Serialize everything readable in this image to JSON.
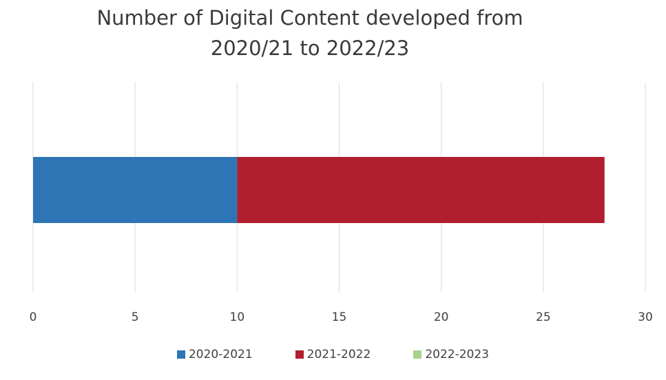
{
  "chart_data": {
    "type": "bar",
    "orientation": "horizontal",
    "stacked": true,
    "title_lines": [
      "Number of Digital Content developed from",
      "2020/21 to 2022/23"
    ],
    "categories": [
      ""
    ],
    "series": [
      {
        "name": "2020-2021",
        "values": [
          10
        ],
        "color": "#2e75b6"
      },
      {
        "name": "2021-2022",
        "values": [
          18
        ],
        "color": "#b01e2f"
      },
      {
        "name": "2022-2023",
        "values": [
          0
        ],
        "color": "#a9d18e"
      }
    ],
    "xlim": [
      0,
      30
    ],
    "xticks": [
      0,
      5,
      10,
      15,
      20,
      25,
      30
    ],
    "grid": true,
    "legend_position": "bottom"
  }
}
